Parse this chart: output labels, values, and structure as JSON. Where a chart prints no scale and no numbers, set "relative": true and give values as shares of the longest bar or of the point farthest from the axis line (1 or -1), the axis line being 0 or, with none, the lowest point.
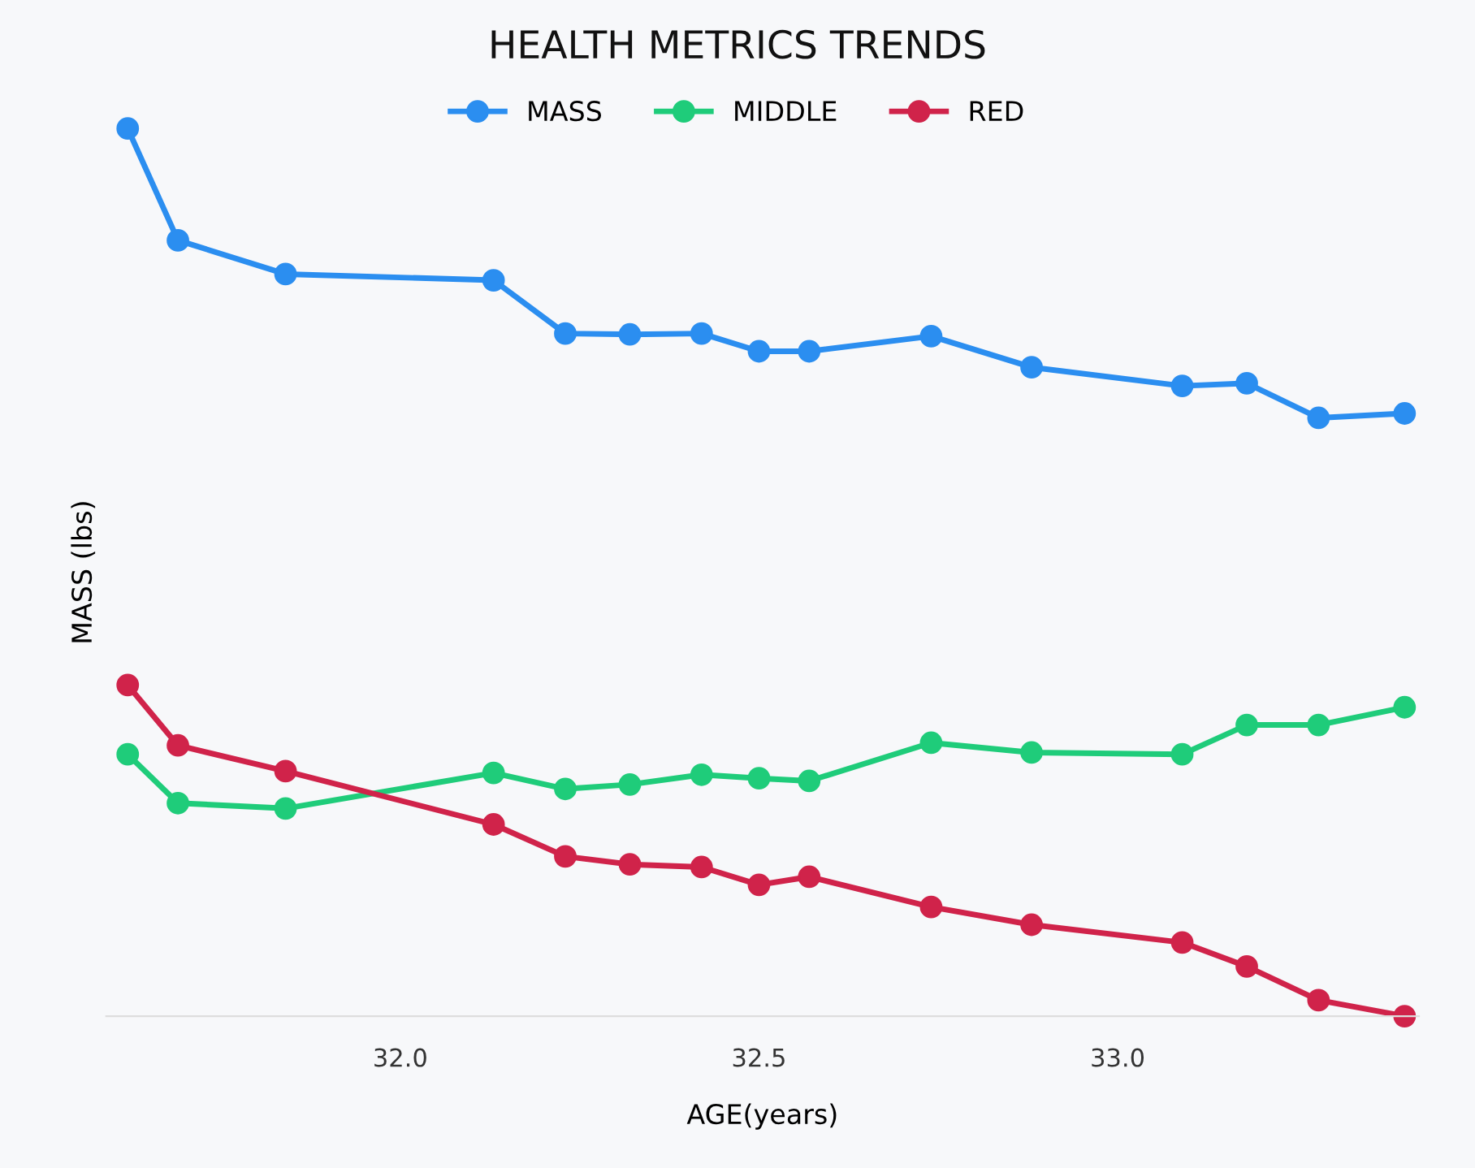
{
  "chart_data": {
    "type": "line",
    "title": "HEALTH METRICS TRENDS",
    "xlabel": "AGE(years)",
    "ylabel": "MASS (lbs)",
    "relative": true,
    "legend": "top",
    "marker": "circle",
    "line_style": "solid",
    "grid": false,
    "tick_labels": "x",
    "x": [
      31.62,
      31.69,
      31.84,
      32.13,
      32.23,
      32.32,
      32.42,
      32.5,
      32.57,
      32.74,
      32.88,
      33.09,
      33.18,
      33.28,
      33.4
    ],
    "xlim": [
      31.59,
      33.42
    ],
    "xticks": [
      {
        "value": 32.0,
        "label": "32.0"
      },
      {
        "value": 32.5,
        "label": "32.5"
      },
      {
        "value": 33.0,
        "label": "33.0"
      }
    ],
    "series": [
      {
        "name": "MASS",
        "color": "#2b8ef0",
        "values": [
          1.0,
          0.874,
          0.836,
          0.829,
          0.769,
          0.768,
          0.769,
          0.749,
          0.749,
          0.766,
          0.731,
          0.71,
          0.713,
          0.674,
          0.679
        ]
      },
      {
        "name": "MIDDLE",
        "color": "#1fcc7a",
        "values": [
          0.295,
          0.24,
          0.234,
          0.274,
          0.256,
          0.261,
          0.272,
          0.268,
          0.265,
          0.308,
          0.297,
          0.295,
          0.328,
          0.328,
          0.348
        ]
      },
      {
        "name": "RED",
        "color": "#d0234a",
        "values": [
          0.373,
          0.305,
          0.276,
          0.216,
          0.18,
          0.171,
          0.168,
          0.148,
          0.157,
          0.123,
          0.103,
          0.083,
          0.056,
          0.018,
          0.0
        ]
      }
    ]
  }
}
